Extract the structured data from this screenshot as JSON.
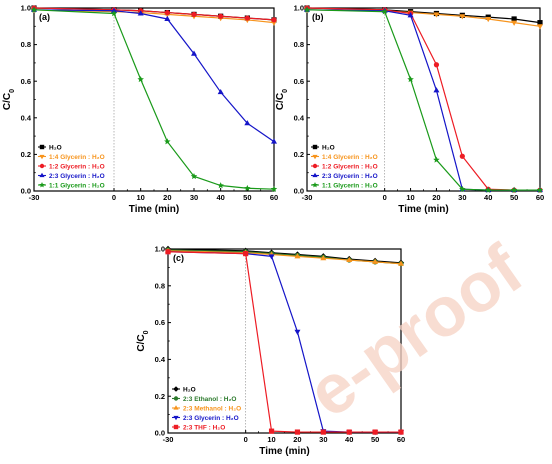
{
  "watermark": "e-proof",
  "colors": {
    "black": "#000000",
    "orange": "#f7941d",
    "red": "#ed1c24",
    "blue": "#1515c8",
    "green": "#1a9a1a",
    "green_dark": "#2c7a2c"
  },
  "chart_data": [
    {
      "type": "line",
      "label": "(a)",
      "xlabel": "Time (min)",
      "ylabel": "C/C0",
      "xlim": [
        -30,
        60
      ],
      "ylim": [
        0,
        1.0
      ],
      "xticks": [
        "-30",
        "0",
        "10",
        "20",
        "30",
        "40",
        "50",
        "60"
      ],
      "yticks": [
        "0.0",
        "0.2",
        "0.4",
        "0.6",
        "0.8",
        "1.0"
      ],
      "reference_line_x": 0,
      "legend_position": "bottom-left",
      "series": [
        {
          "name": "H2O",
          "legend_text": "H₂O",
          "color": "#000000",
          "marker": "square",
          "x": [
            -30,
            0,
            10,
            20,
            30,
            40,
            50,
            60
          ],
          "y": [
            1.0,
            0.99,
            0.985,
            0.975,
            0.965,
            0.955,
            0.945,
            0.935
          ]
        },
        {
          "name": "1:4 Glycerin : H2O",
          "legend_text": "1:4  Glycerin : H₂O",
          "color": "#f7941d",
          "marker": "triangle-down",
          "x": [
            -30,
            0,
            10,
            20,
            30,
            40,
            50,
            60
          ],
          "y": [
            0.99,
            0.98,
            0.975,
            0.965,
            0.955,
            0.945,
            0.935,
            0.92
          ]
        },
        {
          "name": "1:2 Glycerin : H2O",
          "legend_text": "1:2  Glycerin : H₂O",
          "color": "#ed1c24",
          "marker": "circle",
          "x": [
            -30,
            0,
            10,
            20,
            30,
            40,
            50,
            60
          ],
          "y": [
            1.0,
            0.99,
            0.985,
            0.975,
            0.965,
            0.955,
            0.945,
            0.935
          ]
        },
        {
          "name": "2:3 Glycerin : H2O",
          "legend_text": "2:3  Glycerin : H₂O",
          "color": "#1515c8",
          "marker": "triangle-up",
          "x": [
            -30,
            0,
            10,
            20,
            30,
            40,
            50,
            60
          ],
          "y": [
            0.99,
            0.985,
            0.97,
            0.94,
            0.75,
            0.54,
            0.37,
            0.27
          ]
        },
        {
          "name": "1:1 Glycerin : H2O",
          "legend_text": "1:1  Glycerin : H₂O",
          "color": "#1a9a1a",
          "marker": "star",
          "x": [
            -30,
            0,
            10,
            20,
            30,
            40,
            50,
            60
          ],
          "y": [
            0.99,
            0.97,
            0.61,
            0.27,
            0.08,
            0.03,
            0.015,
            0.01
          ]
        }
      ]
    },
    {
      "type": "line",
      "label": "(b)",
      "xlabel": "Time (min)",
      "ylabel": "C/C0",
      "xlim": [
        -30,
        60
      ],
      "ylim": [
        0,
        1.0
      ],
      "xticks": [
        "-30",
        "0",
        "10",
        "20",
        "30",
        "40",
        "50",
        "60"
      ],
      "yticks": [
        "0.0",
        "0.2",
        "0.4",
        "0.6",
        "0.8",
        "1.0"
      ],
      "reference_line_x": 0,
      "legend_position": "bottom-left",
      "series": [
        {
          "name": "H2O",
          "legend_text": "H₂O",
          "color": "#000000",
          "marker": "square",
          "x": [
            -30,
            0,
            10,
            20,
            30,
            40,
            50,
            60
          ],
          "y": [
            1.0,
            0.99,
            0.98,
            0.97,
            0.96,
            0.95,
            0.94,
            0.92
          ]
        },
        {
          "name": "1:4 Glycerin : H2O",
          "legend_text": "1:4  Glycerin : H₂O",
          "color": "#f7941d",
          "marker": "triangle-down",
          "x": [
            -30,
            0,
            10,
            20,
            30,
            40,
            50,
            60
          ],
          "y": [
            0.99,
            0.985,
            0.975,
            0.965,
            0.955,
            0.94,
            0.92,
            0.9
          ]
        },
        {
          "name": "1:2 Glycerin : H2O",
          "legend_text": "1:2  Glycerin : H₂O",
          "color": "#ed1c24",
          "marker": "circle",
          "x": [
            -30,
            0,
            10,
            20,
            30,
            40,
            50,
            60
          ],
          "y": [
            1.0,
            0.99,
            0.97,
            0.69,
            0.19,
            0.01,
            0.005,
            0.005
          ]
        },
        {
          "name": "2:3 Glycerin : H2O",
          "legend_text": "2:3  Glycerin : H₂O",
          "color": "#1515c8",
          "marker": "triangle-up",
          "x": [
            -30,
            0,
            10,
            20,
            30,
            40,
            50,
            60
          ],
          "y": [
            0.99,
            0.985,
            0.96,
            0.55,
            0.01,
            0.005,
            0.005,
            0.005
          ]
        },
        {
          "name": "1:1 Glycerin : H2O",
          "legend_text": "1:1  Glycerin : H₂O",
          "color": "#1a9a1a",
          "marker": "star",
          "x": [
            -30,
            0,
            10,
            20,
            30,
            40,
            50,
            60
          ],
          "y": [
            0.99,
            0.98,
            0.61,
            0.17,
            0.01,
            0.005,
            0.005,
            0.005
          ]
        }
      ]
    },
    {
      "type": "line",
      "label": "(c)",
      "xlabel": "Time (min)",
      "ylabel": "C/C0",
      "xlim": [
        -30,
        60
      ],
      "ylim": [
        0,
        1.0
      ],
      "xticks": [
        "-30",
        "0",
        "10",
        "20",
        "30",
        "40",
        "50",
        "60"
      ],
      "yticks": [
        "0.0",
        "0.2",
        "0.4",
        "0.6",
        "0.8",
        "1.0"
      ],
      "reference_line_x": 0,
      "legend_position": "bottom-left",
      "series": [
        {
          "name": "H2O",
          "legend_text": "H₂O",
          "color": "#000000",
          "marker": "diamond",
          "x": [
            -30,
            0,
            10,
            20,
            30,
            40,
            50,
            60
          ],
          "y": [
            1.0,
            0.99,
            0.98,
            0.97,
            0.96,
            0.945,
            0.935,
            0.925
          ]
        },
        {
          "name": "2:3 Ethanol : H2O",
          "legend_text": "2:3  Ethanol : H₂O",
          "color": "#2c7a2c",
          "marker": "circle",
          "x": [
            -30,
            0,
            10,
            20,
            30,
            40,
            50,
            60
          ],
          "y": [
            0.995,
            0.985,
            0.975,
            0.965,
            0.955,
            0.94,
            0.93,
            0.92
          ]
        },
        {
          "name": "2:3 Methanol : H2O",
          "legend_text": "2:3  Methanol : H₂O",
          "color": "#f7941d",
          "marker": "triangle-up",
          "x": [
            -30,
            0,
            10,
            20,
            30,
            40,
            50,
            60
          ],
          "y": [
            0.99,
            0.98,
            0.97,
            0.96,
            0.95,
            0.94,
            0.93,
            0.92
          ]
        },
        {
          "name": "2:3 Glycerin : H2O",
          "legend_text": "2:3  Glycerin : H₂O",
          "color": "#1515c8",
          "marker": "triangle-down",
          "x": [
            -30,
            0,
            10,
            20,
            30,
            40,
            50,
            60
          ],
          "y": [
            0.985,
            0.975,
            0.96,
            0.55,
            0.01,
            0.005,
            0.005,
            0.005
          ]
        },
        {
          "name": "2:3 THF : H2O",
          "legend_text": "2:3  THF : H₂O",
          "color": "#ed1c24",
          "marker": "square",
          "x": [
            -30,
            0,
            10,
            20,
            30,
            40,
            50,
            60
          ],
          "y": [
            0.985,
            0.975,
            0.01,
            0.005,
            0.005,
            0.005,
            0.005,
            0.005
          ]
        }
      ]
    }
  ]
}
